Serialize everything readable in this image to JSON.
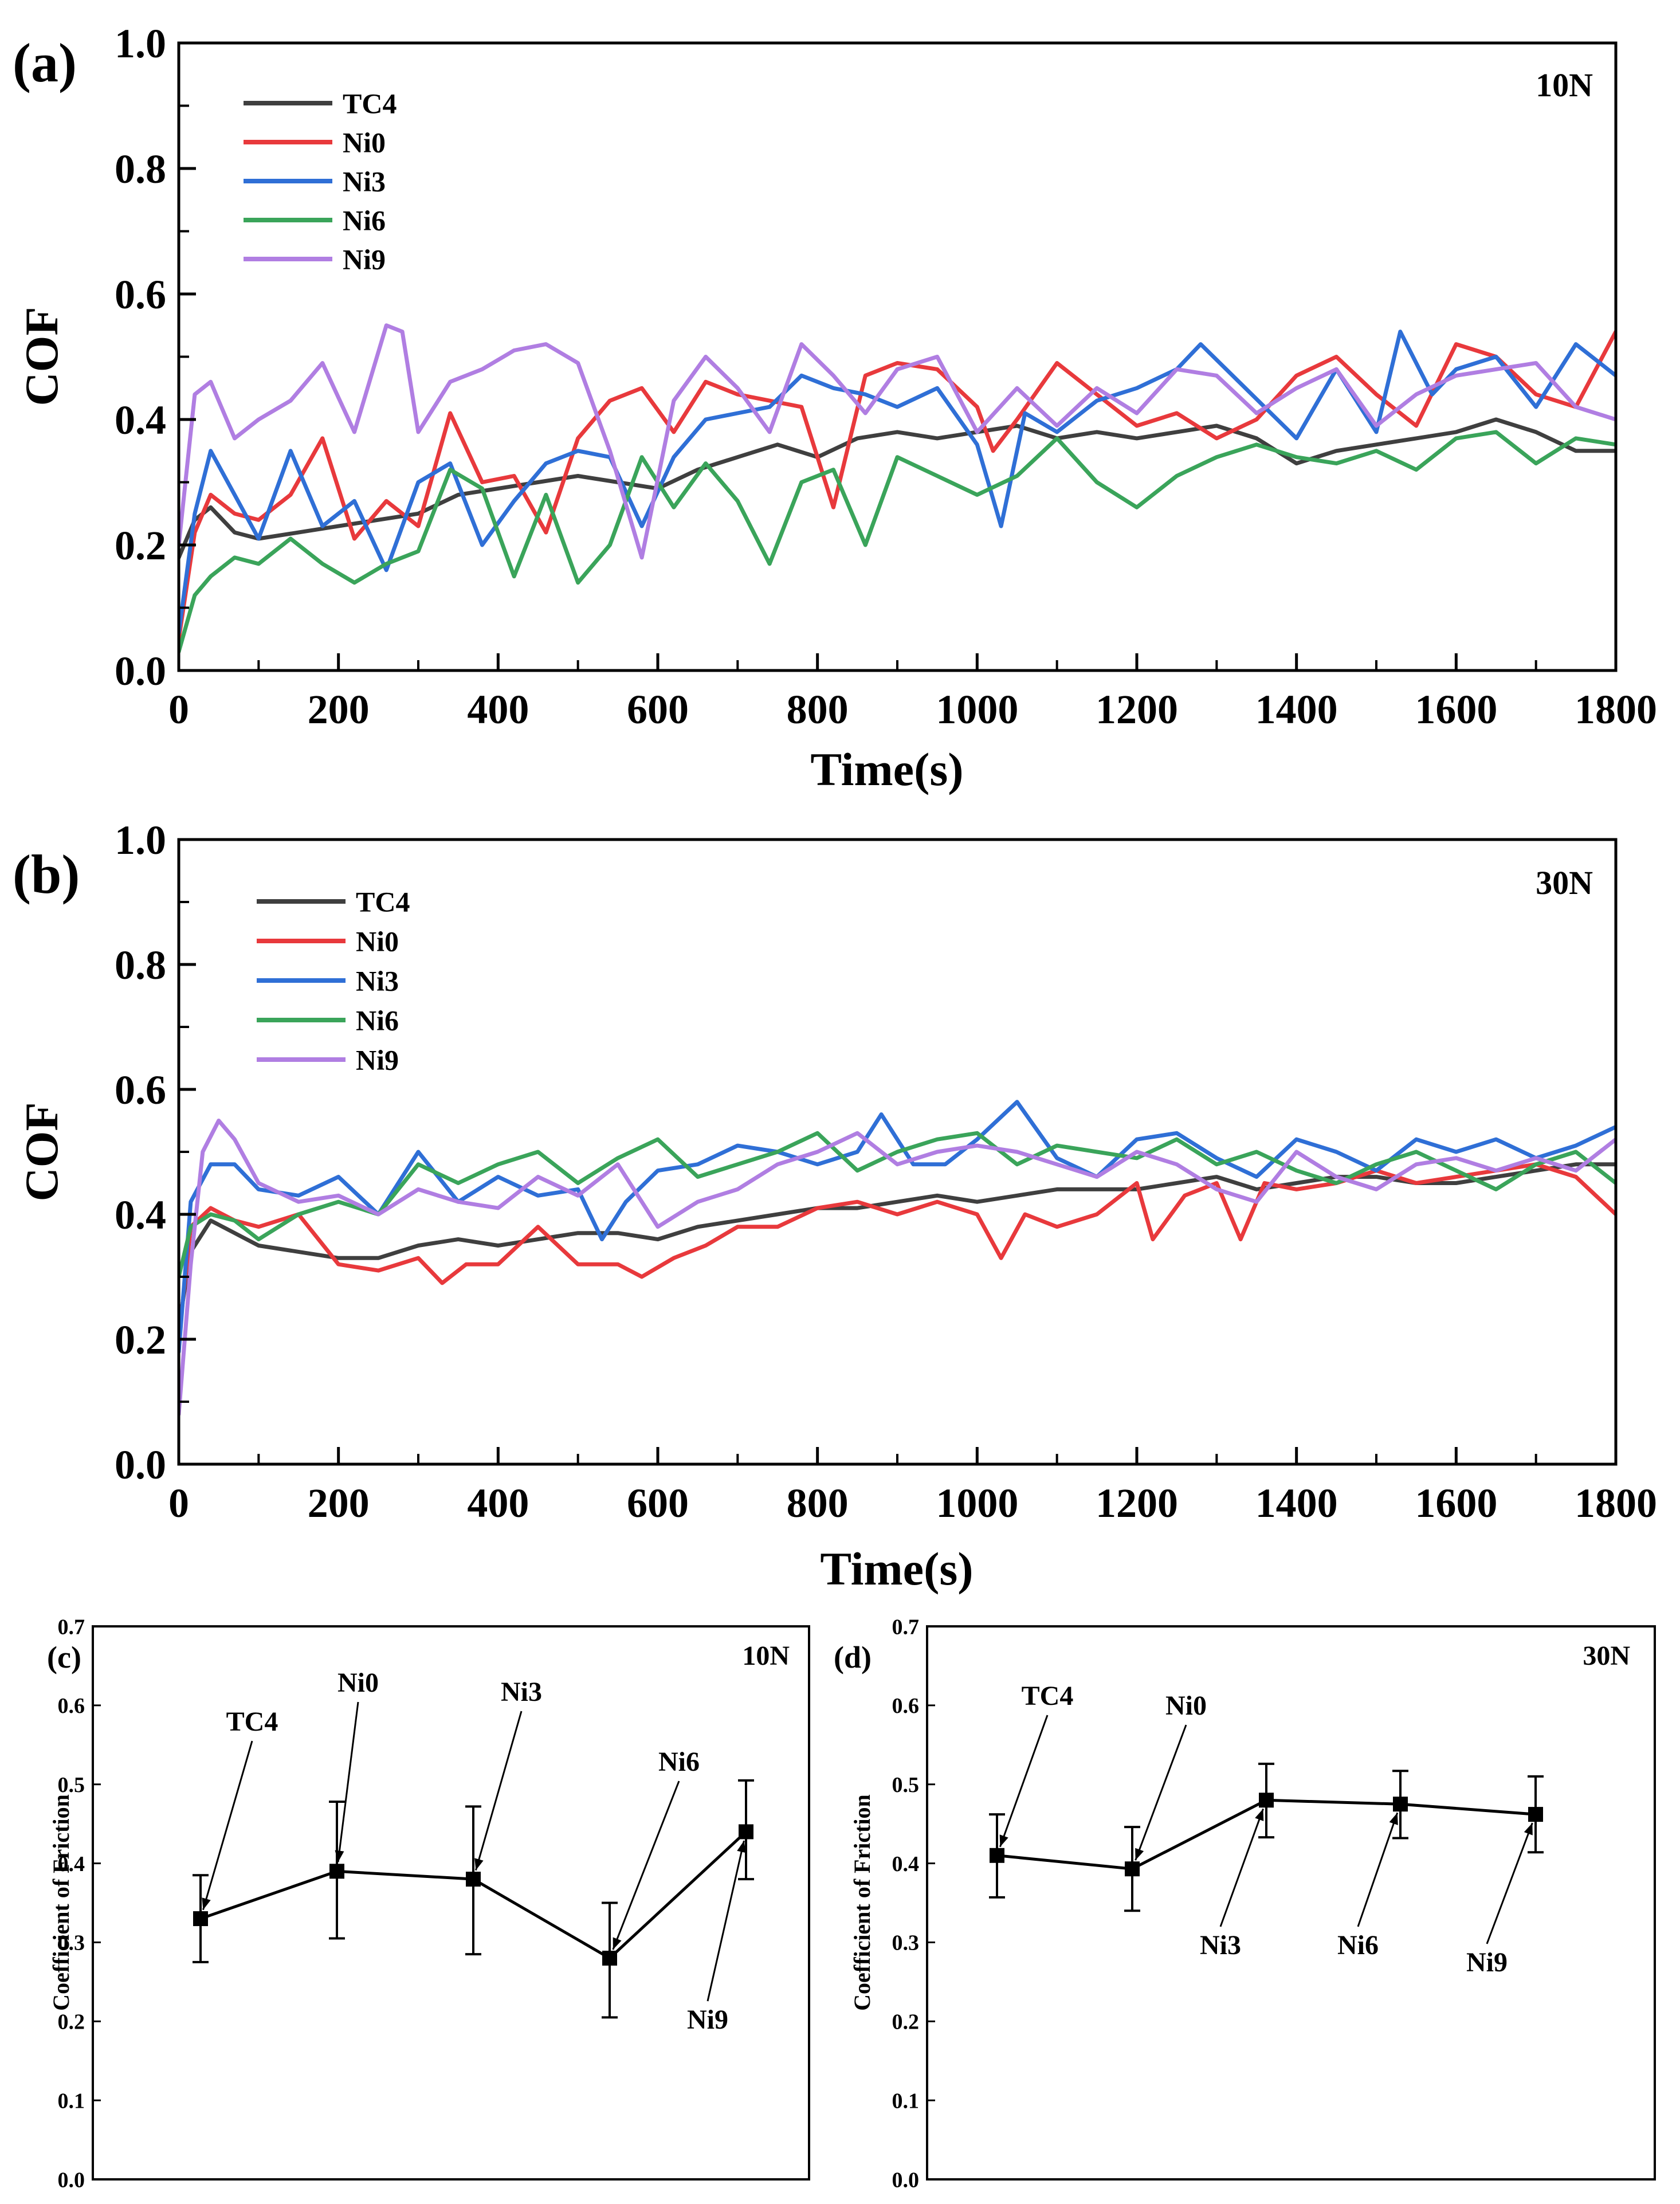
{
  "chart_data": [
    {
      "panel": "(a)",
      "type": "line",
      "note": "10N",
      "xlabel": "Time(s)",
      "ylabel": "COF",
      "xlim": [
        0,
        1800
      ],
      "ylim": [
        0.0,
        1.0
      ],
      "xticks": [
        "0",
        "200",
        "400",
        "600",
        "800",
        "1000",
        "1200",
        "1400",
        "1600",
        "1800"
      ],
      "yticks": [
        "0.0",
        "0.2",
        "0.4",
        "0.6",
        "0.8",
        "1.0"
      ],
      "legend_position": "top-left",
      "series": [
        {
          "name": "TC4",
          "color": "#3f3f3f",
          "x": [
            0,
            20,
            40,
            70,
            100,
            150,
            200,
            250,
            300,
            350,
            400,
            450,
            500,
            550,
            600,
            650,
            700,
            750,
            800,
            850,
            900,
            950,
            1000,
            1050,
            1100,
            1150,
            1200,
            1250,
            1300,
            1350,
            1400,
            1450,
            1500,
            1550,
            1600,
            1650,
            1700,
            1750,
            1800
          ],
          "y": [
            0.18,
            0.24,
            0.26,
            0.22,
            0.21,
            0.22,
            0.23,
            0.24,
            0.25,
            0.28,
            0.29,
            0.3,
            0.31,
            0.3,
            0.29,
            0.32,
            0.34,
            0.36,
            0.34,
            0.37,
            0.38,
            0.37,
            0.38,
            0.39,
            0.37,
            0.38,
            0.37,
            0.38,
            0.39,
            0.37,
            0.33,
            0.35,
            0.36,
            0.37,
            0.38,
            0.4,
            0.38,
            0.35,
            0.35
          ]
        },
        {
          "name": "Ni0",
          "color": "#e8393c",
          "x": [
            0,
            20,
            40,
            70,
            100,
            140,
            180,
            220,
            260,
            300,
            340,
            380,
            420,
            460,
            500,
            540,
            580,
            620,
            660,
            700,
            740,
            780,
            820,
            860,
            900,
            950,
            1000,
            1020,
            1050,
            1100,
            1150,
            1200,
            1250,
            1300,
            1350,
            1400,
            1450,
            1500,
            1550,
            1600,
            1650,
            1700,
            1750,
            1800
          ],
          "y": [
            0.05,
            0.22,
            0.28,
            0.25,
            0.24,
            0.28,
            0.37,
            0.21,
            0.27,
            0.23,
            0.41,
            0.3,
            0.31,
            0.22,
            0.37,
            0.43,
            0.45,
            0.38,
            0.46,
            0.44,
            0.43,
            0.42,
            0.26,
            0.47,
            0.49,
            0.48,
            0.42,
            0.35,
            0.4,
            0.49,
            0.44,
            0.39,
            0.41,
            0.37,
            0.4,
            0.47,
            0.5,
            0.44,
            0.39,
            0.52,
            0.5,
            0.44,
            0.42,
            0.54
          ]
        },
        {
          "name": "Ni3",
          "color": "#2f6fd6",
          "x": [
            0,
            20,
            40,
            70,
            100,
            140,
            180,
            220,
            260,
            300,
            340,
            380,
            420,
            460,
            500,
            540,
            580,
            620,
            660,
            700,
            740,
            780,
            820,
            860,
            900,
            950,
            1000,
            1030,
            1060,
            1100,
            1150,
            1200,
            1250,
            1280,
            1320,
            1360,
            1400,
            1450,
            1500,
            1530,
            1570,
            1600,
            1650,
            1700,
            1750,
            1800
          ],
          "y": [
            0.06,
            0.25,
            0.35,
            0.28,
            0.21,
            0.35,
            0.23,
            0.27,
            0.16,
            0.3,
            0.33,
            0.2,
            0.27,
            0.33,
            0.35,
            0.34,
            0.23,
            0.34,
            0.4,
            0.41,
            0.42,
            0.47,
            0.45,
            0.44,
            0.42,
            0.45,
            0.36,
            0.23,
            0.41,
            0.38,
            0.43,
            0.45,
            0.48,
            0.52,
            0.47,
            0.42,
            0.37,
            0.48,
            0.38,
            0.54,
            0.44,
            0.48,
            0.5,
            0.42,
            0.52,
            0.47
          ]
        },
        {
          "name": "Ni6",
          "color": "#3aa45a",
          "x": [
            0,
            20,
            40,
            70,
            100,
            140,
            180,
            220,
            260,
            300,
            340,
            380,
            420,
            460,
            500,
            540,
            580,
            620,
            660,
            700,
            740,
            780,
            820,
            860,
            900,
            950,
            1000,
            1050,
            1100,
            1150,
            1200,
            1250,
            1300,
            1350,
            1400,
            1450,
            1500,
            1550,
            1600,
            1650,
            1700,
            1750,
            1800
          ],
          "y": [
            0.03,
            0.12,
            0.15,
            0.18,
            0.17,
            0.21,
            0.17,
            0.14,
            0.17,
            0.19,
            0.32,
            0.29,
            0.15,
            0.28,
            0.14,
            0.2,
            0.34,
            0.26,
            0.33,
            0.27,
            0.17,
            0.3,
            0.32,
            0.2,
            0.34,
            0.31,
            0.28,
            0.31,
            0.37,
            0.3,
            0.26,
            0.31,
            0.34,
            0.36,
            0.34,
            0.33,
            0.35,
            0.32,
            0.37,
            0.38,
            0.33,
            0.37,
            0.36
          ]
        },
        {
          "name": "Ni9",
          "color": "#b07ee2",
          "x": [
            0,
            20,
            40,
            70,
            100,
            140,
            180,
            220,
            260,
            280,
            300,
            340,
            380,
            420,
            460,
            500,
            540,
            580,
            620,
            660,
            700,
            740,
            780,
            820,
            860,
            900,
            950,
            1000,
            1050,
            1100,
            1150,
            1200,
            1250,
            1300,
            1350,
            1400,
            1450,
            1500,
            1550,
            1600,
            1650,
            1700,
            1750,
            1800
          ],
          "y": [
            0.2,
            0.44,
            0.46,
            0.37,
            0.4,
            0.43,
            0.49,
            0.38,
            0.55,
            0.54,
            0.38,
            0.46,
            0.48,
            0.51,
            0.52,
            0.49,
            0.35,
            0.18,
            0.43,
            0.5,
            0.45,
            0.38,
            0.52,
            0.47,
            0.41,
            0.48,
            0.5,
            0.38,
            0.45,
            0.39,
            0.45,
            0.41,
            0.48,
            0.47,
            0.41,
            0.45,
            0.48,
            0.39,
            0.44,
            0.47,
            0.48,
            0.49,
            0.42,
            0.4
          ]
        }
      ]
    },
    {
      "panel": "(b)",
      "type": "line",
      "note": "30N",
      "xlabel": "Time(s)",
      "ylabel": "COF",
      "xlim": [
        0,
        1800
      ],
      "ylim": [
        0.0,
        1.0
      ],
      "xticks": [
        "0",
        "200",
        "400",
        "600",
        "800",
        "1000",
        "1200",
        "1400",
        "1600",
        "1800"
      ],
      "yticks": [
        "0.0",
        "0.2",
        "0.4",
        "0.6",
        "0.8",
        "1.0"
      ],
      "legend_position": "top-left",
      "series": [
        {
          "name": "TC4",
          "color": "#3f3f3f",
          "x": [
            0,
            15,
            40,
            70,
            100,
            150,
            200,
            250,
            300,
            350,
            400,
            450,
            500,
            550,
            600,
            650,
            700,
            750,
            800,
            850,
            900,
            950,
            1000,
            1050,
            1100,
            1150,
            1200,
            1250,
            1300,
            1350,
            1400,
            1450,
            1500,
            1550,
            1600,
            1650,
            1700,
            1750,
            1800
          ],
          "y": [
            0.22,
            0.34,
            0.39,
            0.37,
            0.35,
            0.34,
            0.33,
            0.33,
            0.35,
            0.36,
            0.35,
            0.36,
            0.37,
            0.37,
            0.36,
            0.38,
            0.39,
            0.4,
            0.41,
            0.41,
            0.42,
            0.43,
            0.42,
            0.43,
            0.44,
            0.44,
            0.44,
            0.45,
            0.46,
            0.44,
            0.45,
            0.46,
            0.46,
            0.45,
            0.45,
            0.46,
            0.47,
            0.48,
            0.48
          ]
        },
        {
          "name": "Ni0",
          "color": "#e8393c",
          "x": [
            0,
            15,
            40,
            70,
            100,
            150,
            200,
            250,
            300,
            330,
            360,
            400,
            450,
            500,
            550,
            580,
            620,
            660,
            700,
            750,
            800,
            850,
            900,
            950,
            1000,
            1030,
            1060,
            1100,
            1150,
            1200,
            1220,
            1260,
            1300,
            1330,
            1360,
            1400,
            1450,
            1500,
            1550,
            1600,
            1650,
            1700,
            1750,
            1800
          ],
          "y": [
            0.2,
            0.38,
            0.41,
            0.39,
            0.38,
            0.4,
            0.32,
            0.31,
            0.33,
            0.29,
            0.32,
            0.32,
            0.38,
            0.32,
            0.32,
            0.3,
            0.33,
            0.35,
            0.38,
            0.38,
            0.41,
            0.42,
            0.4,
            0.42,
            0.4,
            0.33,
            0.4,
            0.38,
            0.4,
            0.45,
            0.36,
            0.43,
            0.45,
            0.36,
            0.45,
            0.44,
            0.45,
            0.47,
            0.45,
            0.46,
            0.47,
            0.48,
            0.46,
            0.4
          ]
        },
        {
          "name": "Ni3",
          "color": "#2f6fd6",
          "x": [
            0,
            15,
            40,
            70,
            100,
            150,
            200,
            250,
            300,
            350,
            400,
            450,
            500,
            530,
            560,
            600,
            650,
            700,
            750,
            800,
            850,
            880,
            920,
            960,
            1000,
            1050,
            1100,
            1150,
            1200,
            1250,
            1300,
            1350,
            1400,
            1450,
            1500,
            1550,
            1600,
            1650,
            1700,
            1750,
            1800
          ],
          "y": [
            0.18,
            0.42,
            0.48,
            0.48,
            0.44,
            0.43,
            0.46,
            0.4,
            0.5,
            0.42,
            0.46,
            0.43,
            0.44,
            0.36,
            0.42,
            0.47,
            0.48,
            0.51,
            0.5,
            0.48,
            0.5,
            0.56,
            0.48,
            0.48,
            0.52,
            0.58,
            0.49,
            0.46,
            0.52,
            0.53,
            0.49,
            0.46,
            0.52,
            0.5,
            0.47,
            0.52,
            0.5,
            0.52,
            0.49,
            0.51,
            0.54
          ]
        },
        {
          "name": "Ni6",
          "color": "#3aa45a",
          "x": [
            0,
            15,
            40,
            70,
            100,
            150,
            200,
            250,
            300,
            350,
            400,
            450,
            500,
            550,
            600,
            650,
            700,
            750,
            800,
            850,
            900,
            950,
            1000,
            1050,
            1100,
            1150,
            1200,
            1250,
            1300,
            1350,
            1400,
            1450,
            1500,
            1550,
            1600,
            1650,
            1700,
            1750,
            1800
          ],
          "y": [
            0.3,
            0.38,
            0.4,
            0.39,
            0.36,
            0.4,
            0.42,
            0.4,
            0.48,
            0.45,
            0.48,
            0.5,
            0.45,
            0.49,
            0.52,
            0.46,
            0.48,
            0.5,
            0.53,
            0.47,
            0.5,
            0.52,
            0.53,
            0.48,
            0.51,
            0.5,
            0.49,
            0.52,
            0.48,
            0.5,
            0.47,
            0.45,
            0.48,
            0.5,
            0.47,
            0.44,
            0.48,
            0.5,
            0.45
          ]
        },
        {
          "name": "Ni9",
          "color": "#b07ee2",
          "x": [
            0,
            15,
            30,
            50,
            70,
            100,
            150,
            200,
            250,
            300,
            350,
            400,
            450,
            500,
            550,
            600,
            650,
            700,
            750,
            800,
            850,
            900,
            950,
            1000,
            1050,
            1100,
            1150,
            1200,
            1250,
            1300,
            1350,
            1400,
            1450,
            1500,
            1550,
            1600,
            1650,
            1700,
            1750,
            1800
          ],
          "y": [
            0.08,
            0.32,
            0.5,
            0.55,
            0.52,
            0.45,
            0.42,
            0.43,
            0.4,
            0.44,
            0.42,
            0.41,
            0.46,
            0.43,
            0.48,
            0.38,
            0.42,
            0.44,
            0.48,
            0.5,
            0.53,
            0.48,
            0.5,
            0.51,
            0.5,
            0.48,
            0.46,
            0.5,
            0.48,
            0.44,
            0.42,
            0.5,
            0.46,
            0.44,
            0.48,
            0.49,
            0.47,
            0.49,
            0.47,
            0.52
          ]
        }
      ]
    },
    {
      "panel": "(c)",
      "type": "scatter",
      "note": "10N",
      "ylabel": "Coefficient of Friction",
      "ylim": [
        0.0,
        0.7
      ],
      "yticks": [
        "0.0",
        "0.1",
        "0.2",
        "0.3",
        "0.4",
        "0.5",
        "0.6",
        "0.7"
      ],
      "categories": [
        "TC4",
        "Ni0",
        "Ni3",
        "Ni6",
        "Ni9"
      ],
      "values": [
        0.33,
        0.39,
        0.38,
        0.28,
        0.44
      ],
      "error_low": [
        0.275,
        0.305,
        0.285,
        0.205,
        0.38
      ],
      "error_high": [
        0.385,
        0.478,
        0.472,
        0.35,
        0.505
      ],
      "annotations": [
        {
          "label": "TC4",
          "target": "TC4",
          "side": "above"
        },
        {
          "label": "Ni0",
          "target": "Ni0",
          "side": "above"
        },
        {
          "label": "Ni3",
          "target": "Ni3",
          "side": "above"
        },
        {
          "label": "Ni6",
          "target": "Ni6",
          "side": "above"
        },
        {
          "label": "Ni9",
          "target": "Ni9",
          "side": "below"
        }
      ]
    },
    {
      "panel": "(d)",
      "type": "scatter",
      "note": "30N",
      "ylabel": "Coefficient of Friction",
      "ylim": [
        0.0,
        0.7
      ],
      "yticks": [
        "0.0",
        "0.1",
        "0.2",
        "0.3",
        "0.4",
        "0.5",
        "0.6",
        "0.7"
      ],
      "categories": [
        "TC4",
        "Ni0",
        "Ni3",
        "Ni6",
        "Ni9"
      ],
      "values": [
        0.41,
        0.393,
        0.48,
        0.475,
        0.462
      ],
      "error_low": [
        0.357,
        0.34,
        0.433,
        0.432,
        0.414
      ],
      "error_high": [
        0.462,
        0.446,
        0.526,
        0.517,
        0.51
      ],
      "annotations": [
        {
          "label": "TC4",
          "target": "TC4",
          "side": "above"
        },
        {
          "label": "Ni0",
          "target": "Ni0",
          "side": "above"
        },
        {
          "label": "Ni3",
          "target": "Ni3",
          "side": "below"
        },
        {
          "label": "Ni6",
          "target": "Ni6",
          "side": "below"
        },
        {
          "label": "Ni9",
          "target": "Ni9",
          "side": "below"
        }
      ]
    }
  ]
}
